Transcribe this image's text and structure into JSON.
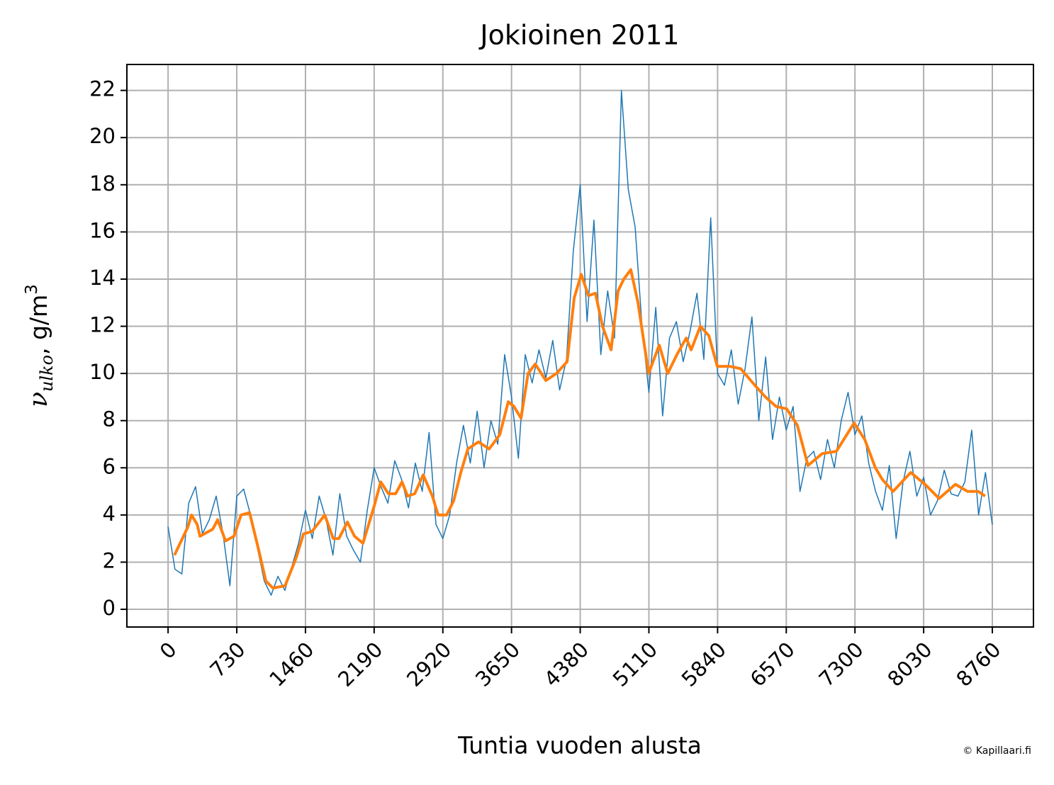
{
  "chart_data": {
    "type": "line",
    "title": "Jokioinen 2011",
    "xlabel": "Tuntia vuoden alusta",
    "ylabel": {
      "symbol": "ν",
      "subscript": "ulko",
      "unit": ", g/m",
      "exponent": "3"
    },
    "credit": "© Kapillaari.fi",
    "xlim": [
      -438,
      9197
    ],
    "ylim": [
      -0.75,
      23.1
    ],
    "xticks": [
      0,
      730,
      1460,
      2190,
      2920,
      3650,
      4380,
      5110,
      5840,
      6570,
      7300,
      8030,
      8760
    ],
    "yticks": [
      0,
      2,
      4,
      6,
      8,
      10,
      12,
      14,
      16,
      18,
      20,
      22
    ],
    "grid": true,
    "series": [
      {
        "color": "#1f77b4",
        "linewidth": 1.5,
        "x": [
          0,
          73,
          146,
          219,
          292,
          365,
          438,
          511,
          584,
          657,
          730,
          803,
          876,
          949,
          1022,
          1095,
          1168,
          1241,
          1314,
          1387,
          1460,
          1533,
          1606,
          1679,
          1752,
          1825,
          1898,
          1971,
          2044,
          2117,
          2190,
          2263,
          2336,
          2409,
          2482,
          2555,
          2628,
          2701,
          2774,
          2847,
          2920,
          2993,
          3066,
          3139,
          3212,
          3285,
          3358,
          3431,
          3504,
          3577,
          3650,
          3723,
          3796,
          3869,
          3942,
          4015,
          4088,
          4161,
          4234,
          4307,
          4380,
          4453,
          4526,
          4599,
          4672,
          4745,
          4818,
          4891,
          4964,
          5037,
          5110,
          5183,
          5256,
          5329,
          5402,
          5475,
          5548,
          5621,
          5694,
          5767,
          5840,
          5913,
          5986,
          6059,
          6132,
          6205,
          6278,
          6351,
          6424,
          6497,
          6570,
          6643,
          6716,
          6789,
          6862,
          6935,
          7008,
          7081,
          7154,
          7227,
          7300,
          7373,
          7446,
          7519,
          7592,
          7665,
          7738,
          7811,
          7884,
          7957,
          8030,
          8103,
          8176,
          8249,
          8322,
          8395,
          8468,
          8541,
          8614,
          8687,
          8759
        ],
        "values": [
          3.5,
          1.7,
          1.5,
          4.5,
          5.2,
          3.2,
          3.8,
          4.8,
          3.2,
          1.0,
          4.8,
          5.1,
          4.0,
          2.6,
          1.2,
          0.6,
          1.4,
          0.8,
          1.8,
          2.8,
          4.2,
          3.0,
          4.8,
          3.8,
          2.3,
          4.9,
          3.1,
          2.5,
          2.0,
          4.2,
          6.0,
          5.2,
          4.5,
          6.3,
          5.5,
          4.3,
          6.2,
          5.0,
          7.5,
          3.6,
          3.0,
          4.0,
          6.2,
          7.8,
          6.2,
          8.4,
          6.0,
          8.0,
          7.0,
          10.8,
          9.0,
          6.4,
          10.8,
          9.6,
          11.0,
          9.8,
          11.4,
          9.3,
          10.6,
          15.2,
          18.0,
          12.2,
          16.5,
          10.8,
          13.5,
          11.5,
          22.0,
          17.8,
          16.2,
          12.0,
          9.2,
          12.8,
          8.2,
          11.5,
          12.2,
          10.5,
          11.8,
          13.4,
          10.6,
          16.6,
          10.0,
          9.5,
          11.0,
          8.7,
          10.2,
          12.4,
          8.0,
          10.7,
          7.2,
          9.0,
          7.6,
          8.6,
          5.0,
          6.4,
          6.7,
          5.5,
          7.2,
          6.0,
          8.0,
          9.2,
          7.4,
          8.2,
          6.2,
          5.0,
          4.2,
          6.1,
          3.0,
          5.4,
          6.7,
          4.8,
          5.6,
          4.0,
          4.6,
          5.9,
          4.9,
          4.8,
          5.4,
          7.6,
          4.0,
          5.8,
          3.6
        ]
      },
      {
        "color": "#ff7f0e",
        "linewidth": 4,
        "x": [
          68,
          211,
          249,
          309,
          339,
          475,
          527,
          610,
          700,
          776,
          866,
          964,
          1039,
          1115,
          1243,
          1363,
          1439,
          1529,
          1665,
          1755,
          1815,
          1906,
          1981,
          2071,
          2192,
          2260,
          2342,
          2418,
          2486,
          2546,
          2621,
          2711,
          2809,
          2870,
          2960,
          3035,
          3111,
          3186,
          3299,
          3412,
          3525,
          3615,
          3676,
          3751,
          3826,
          3902,
          4015,
          4128,
          4241,
          4316,
          4391,
          4467,
          4542,
          4617,
          4708,
          4783,
          4843,
          4918,
          4994,
          5107,
          5220,
          5310,
          5408,
          5506,
          5559,
          5657,
          5747,
          5837,
          5973,
          6086,
          6236,
          6349,
          6462,
          6575,
          6688,
          6801,
          6952,
          7103,
          7291,
          7404,
          7517,
          7592,
          7705,
          7893,
          8044,
          8194,
          8368,
          8496,
          8609,
          8684
        ],
        "values": [
          2.3,
          3.5,
          4.0,
          3.6,
          3.1,
          3.4,
          3.8,
          2.9,
          3.1,
          4.0,
          4.1,
          2.5,
          1.2,
          0.9,
          1.0,
          2.2,
          3.2,
          3.3,
          4.0,
          3.0,
          3.0,
          3.7,
          3.1,
          2.8,
          4.4,
          5.4,
          4.9,
          4.9,
          5.4,
          4.8,
          4.9,
          5.7,
          4.8,
          4.0,
          4.0,
          4.6,
          5.8,
          6.8,
          7.1,
          6.8,
          7.4,
          8.8,
          8.6,
          8.1,
          10.0,
          10.4,
          9.7,
          10.0,
          10.5,
          13.2,
          14.2,
          13.3,
          13.4,
          12.0,
          11.0,
          13.5,
          14.0,
          14.4,
          13.0,
          10.0,
          11.2,
          10.0,
          10.8,
          11.5,
          11.0,
          12.0,
          11.6,
          10.3,
          10.3,
          10.2,
          9.5,
          9.0,
          8.6,
          8.5,
          7.8,
          6.1,
          6.6,
          6.7,
          7.9,
          7.2,
          6.0,
          5.5,
          5.0,
          5.8,
          5.3,
          4.7,
          5.3,
          5.0,
          5.0,
          4.8
        ]
      }
    ]
  }
}
